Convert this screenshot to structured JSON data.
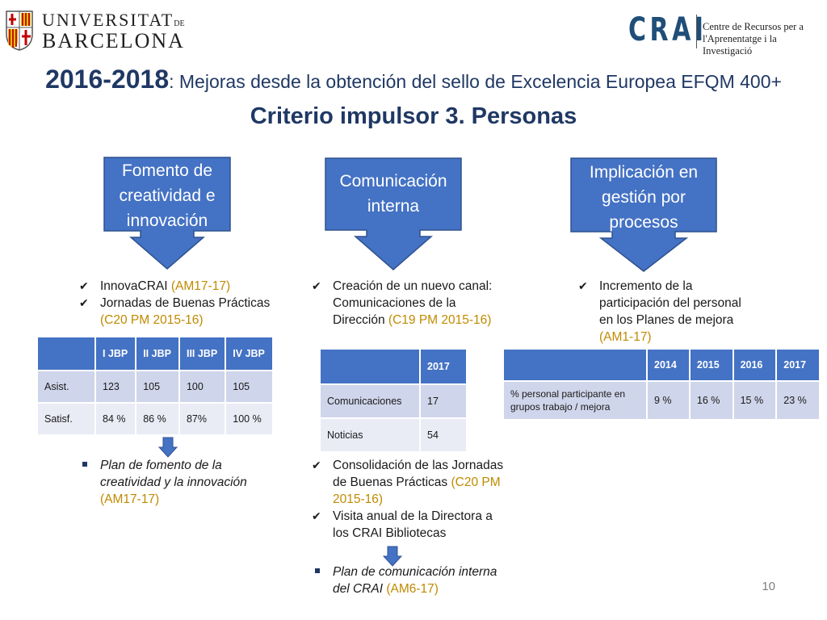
{
  "header": {
    "ub_line1": "UNIVERSITAT",
    "ub_line1_suffix": "DE",
    "ub_line2": "BARCELONA",
    "crai_word": "CRAI",
    "crai_sub1": "Centre de Recursos per a",
    "crai_sub2": "l'Aprenentatge i la Investigació"
  },
  "title": {
    "years": "2016-2018",
    "rest": ": Mejoras desde la obtención del sello de Excelencia Europea EFQM 400+",
    "subtitle": "Criterio impulsor 3. Personas"
  },
  "callouts": [
    {
      "lines": [
        "Fomento de",
        "creatividad e",
        "innovación"
      ]
    },
    {
      "lines": [
        "Comunicación",
        "interna"
      ]
    },
    {
      "lines": [
        "Implicación en",
        "gestión por",
        "procesos"
      ]
    }
  ],
  "col1": {
    "items": [
      {
        "text": "InnovaCRAI ",
        "ref": "(AM17-17)"
      },
      {
        "text": "Jornadas de Buenas Prácticas ",
        "ref": "(C20 PM 2015-16)"
      }
    ],
    "table": {
      "headers": [
        "",
        "I JBP",
        "II JBP",
        "III JBP",
        "IV JBP"
      ],
      "rows": [
        [
          "Asist.",
          "123",
          "105",
          "100",
          "105"
        ],
        [
          "Satisf.",
          "84 %",
          "86 %",
          "87%",
          "100 %"
        ]
      ]
    },
    "plan": {
      "text": "Plan de fomento de la creatividad y la innovación ",
      "ref": "(AM17-17)"
    }
  },
  "col2": {
    "items": [
      {
        "text": "Creación de un  nuevo canal: Comunicaciones de la Dirección ",
        "ref": "(C19 PM 2015-16)"
      }
    ],
    "table": {
      "headers": [
        "",
        "2017"
      ],
      "rows": [
        [
          "Comunicaciones",
          "17"
        ],
        [
          "Noticias",
          "54"
        ]
      ]
    },
    "items2": [
      {
        "text": "Consolidación de las Jornadas de Buenas Prácticas ",
        "ref": "(C20 PM 2015-16)"
      },
      {
        "text": "Visita anual de la Directora a los CRAI Bibliotecas",
        "ref": ""
      }
    ],
    "plan": {
      "text": "Plan de comunicación interna del CRAI ",
      "ref": "(AM6-17)"
    }
  },
  "col3": {
    "items": [
      {
        "text": "Incremento de la participación del personal  en los Planes de mejora ",
        "ref": "(AM1-17)"
      }
    ],
    "table": {
      "headers": [
        "",
        "2014",
        "2015",
        "2016",
        "2017"
      ],
      "rows": [
        [
          "% personal participante en grupos trabajo / mejora",
          "9 %",
          "16 %",
          "15 %",
          "23 %"
        ]
      ]
    }
  },
  "page_number": "10",
  "colors": {
    "accent": "#4472c4",
    "title": "#1f3864",
    "highlight": "#c08a00"
  }
}
